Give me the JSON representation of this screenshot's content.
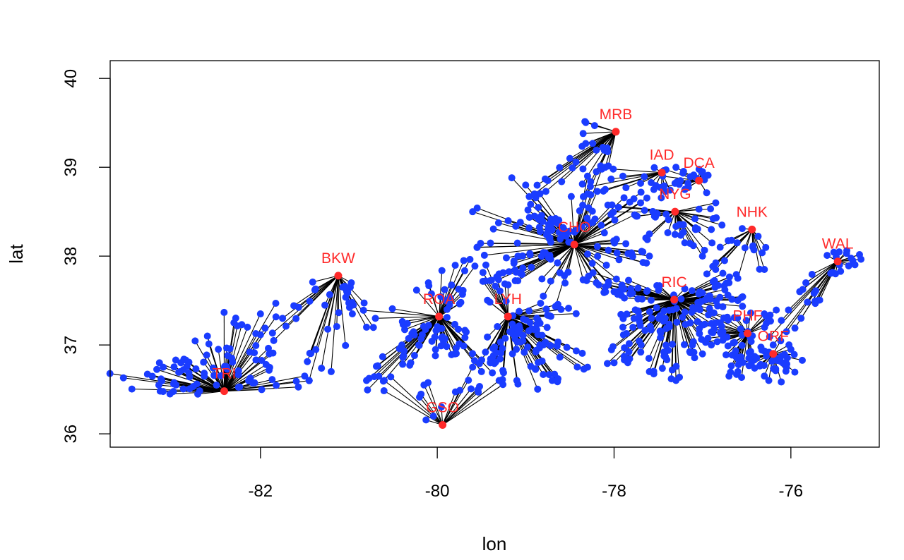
{
  "chart_data": {
    "type": "scatter",
    "title": "",
    "xlabel": "lon",
    "ylabel": "lat",
    "xlim": [
      -83.7,
      -75.0
    ],
    "ylim": [
      35.85,
      40.2
    ],
    "x_ticks": [
      -82,
      -80,
      -78,
      -76
    ],
    "y_ticks": [
      36,
      37,
      38,
      39,
      40
    ],
    "x_tick_labels": [
      "-82",
      "-80",
      "-78",
      "-76"
    ],
    "y_tick_labels": [
      "36",
      "37",
      "38",
      "39",
      "40"
    ],
    "grid": false,
    "legend": "none",
    "colors": {
      "points": "#1a3cff",
      "airports": "#ff2a2a",
      "lines": "#000000",
      "axes": "#000000"
    },
    "series": [
      {
        "name": "airports",
        "points": [
          {
            "label": "MRB",
            "lon": -77.98,
            "lat": 39.4
          },
          {
            "label": "IAD",
            "lon": -77.46,
            "lat": 38.94
          },
          {
            "label": "DCA",
            "lon": -77.04,
            "lat": 38.85
          },
          {
            "label": "NYG",
            "lon": -77.31,
            "lat": 38.5
          },
          {
            "label": "NHK",
            "lon": -76.44,
            "lat": 38.3
          },
          {
            "label": "CHO",
            "lon": -78.45,
            "lat": 38.13
          },
          {
            "label": "BKW",
            "lon": -81.12,
            "lat": 37.78
          },
          {
            "label": "WAL",
            "lon": -75.47,
            "lat": 37.94
          },
          {
            "label": "RIC",
            "lon": -77.32,
            "lat": 37.51
          },
          {
            "label": "ROA",
            "lon": -79.98,
            "lat": 37.32
          },
          {
            "label": "LYH",
            "lon": -79.2,
            "lat": 37.32
          },
          {
            "label": "PHF",
            "lon": -76.49,
            "lat": 37.13
          },
          {
            "label": "ORF",
            "lon": -76.2,
            "lat": 36.9
          },
          {
            "label": "TRI",
            "lon": -82.41,
            "lat": 36.48
          },
          {
            "label": "GSO",
            "lon": -79.94,
            "lat": 36.1
          }
        ]
      },
      {
        "name": "locations",
        "groups": [
          {
            "hub": "MRB",
            "count": 30,
            "points": [
              [
                -78.35,
                39.38
              ],
              [
                -78.5,
                39.1
              ],
              [
                -78.75,
                38.85
              ],
              [
                -78.2,
                38.95
              ],
              [
                -78.9,
                38.7
              ],
              [
                -78.1,
                39.0
              ],
              [
                -78.3,
                38.7
              ]
            ]
          },
          {
            "hub": "IAD",
            "count": 18,
            "points": [
              [
                -77.9,
                38.9
              ],
              [
                -78.1,
                38.75
              ],
              [
                -77.7,
                38.82
              ],
              [
                -77.55,
                38.75
              ]
            ]
          },
          {
            "hub": "DCA",
            "count": 24,
            "points": [
              [
                -77.3,
                39.0
              ],
              [
                -77.2,
                38.75
              ],
              [
                -77.0,
                38.95
              ],
              [
                -77.45,
                38.9
              ],
              [
                -77.25,
                38.85
              ]
            ]
          },
          {
            "hub": "NYG",
            "count": 40,
            "points": [
              [
                -77.95,
                38.55
              ],
              [
                -77.6,
                38.25
              ],
              [
                -77.0,
                38.0
              ],
              [
                -76.9,
                38.3
              ],
              [
                -77.2,
                38.15
              ],
              [
                -77.75,
                38.45
              ],
              [
                -76.85,
                38.6
              ]
            ]
          },
          {
            "hub": "NHK",
            "count": 20,
            "points": [
              [
                -76.8,
                38.1
              ],
              [
                -76.6,
                37.75
              ],
              [
                -76.3,
                37.85
              ],
              [
                -76.75,
                37.95
              ],
              [
                -76.95,
                37.8
              ]
            ]
          },
          {
            "hub": "CHO",
            "count": 150,
            "points": [
              [
                -79.6,
                38.5
              ],
              [
                -79.0,
                38.8
              ],
              [
                -78.3,
                38.9
              ],
              [
                -77.7,
                38.6
              ],
              [
                -77.6,
                38.0
              ],
              [
                -78.0,
                37.6
              ],
              [
                -78.8,
                37.55
              ],
              [
                -79.55,
                38.1
              ],
              [
                -79.3,
                37.8
              ],
              [
                -78.7,
                38.3
              ],
              [
                -78.9,
                38.45
              ]
            ]
          },
          {
            "hub": "BKW",
            "count": 40,
            "points": [
              [
                -81.75,
                37.3
              ],
              [
                -81.2,
                36.7
              ],
              [
                -80.8,
                37.2
              ],
              [
                -81.45,
                36.6
              ],
              [
                -81.85,
                37.05
              ],
              [
                -80.95,
                37.45
              ]
            ]
          },
          {
            "hub": "WAL",
            "count": 35,
            "points": [
              [
                -75.45,
                37.9
              ],
              [
                -75.7,
                37.5
              ],
              [
                -76.05,
                37.15
              ],
              [
                -75.9,
                37.6
              ],
              [
                -75.3,
                37.95
              ],
              [
                -76.2,
                37.0
              ]
            ]
          },
          {
            "hub": "RIC",
            "count": 160,
            "points": [
              [
                -78.2,
                37.7
              ],
              [
                -78.0,
                36.8
              ],
              [
                -77.3,
                36.6
              ],
              [
                -76.7,
                37.7
              ],
              [
                -77.9,
                37.2
              ],
              [
                -76.8,
                37.25
              ],
              [
                -77.6,
                36.7
              ],
              [
                -77.0,
                36.9
              ],
              [
                -76.6,
                37.5
              ]
            ]
          },
          {
            "hub": "ROA",
            "count": 90,
            "points": [
              [
                -80.7,
                37.3
              ],
              [
                -80.8,
                36.6
              ],
              [
                -79.7,
                37.95
              ],
              [
                -79.5,
                36.7
              ],
              [
                -80.4,
                37.0
              ],
              [
                -80.1,
                37.7
              ],
              [
                -80.3,
                36.8
              ],
              [
                -79.8,
                36.9
              ]
            ]
          },
          {
            "hub": "LYH",
            "count": 110,
            "points": [
              [
                -79.45,
                37.9
              ],
              [
                -78.6,
                37.4
              ],
              [
                -78.3,
                36.75
              ],
              [
                -79.1,
                36.6
              ],
              [
                -79.4,
                36.8
              ],
              [
                -78.8,
                37.0
              ],
              [
                -78.7,
                36.6
              ]
            ]
          },
          {
            "hub": "PHF",
            "count": 60,
            "points": [
              [
                -76.85,
                37.25
              ],
              [
                -76.6,
                36.7
              ],
              [
                -76.3,
                37.35
              ],
              [
                -76.9,
                37.0
              ],
              [
                -76.7,
                36.65
              ]
            ]
          },
          {
            "hub": "ORF",
            "count": 40,
            "points": [
              [
                -76.05,
                36.75
              ],
              [
                -76.3,
                36.65
              ],
              [
                -76.4,
                36.85
              ],
              [
                -76.0,
                36.95
              ],
              [
                -76.25,
                36.6
              ]
            ]
          },
          {
            "hub": "TRI",
            "count": 95,
            "points": [
              [
                -83.55,
                36.63
              ],
              [
                -82.9,
                36.8
              ],
              [
                -82.3,
                37.25
              ],
              [
                -81.9,
                36.9
              ],
              [
                -82.6,
                37.1
              ],
              [
                -83.1,
                36.75
              ],
              [
                -81.5,
                36.65
              ],
              [
                -82.0,
                37.35
              ]
            ]
          },
          {
            "hub": "GSO",
            "count": 20,
            "points": [
              [
                -80.6,
                36.6
              ],
              [
                -79.3,
                36.6
              ],
              [
                -80.15,
                36.55
              ],
              [
                -79.6,
                36.75
              ]
            ]
          }
        ]
      }
    ]
  }
}
